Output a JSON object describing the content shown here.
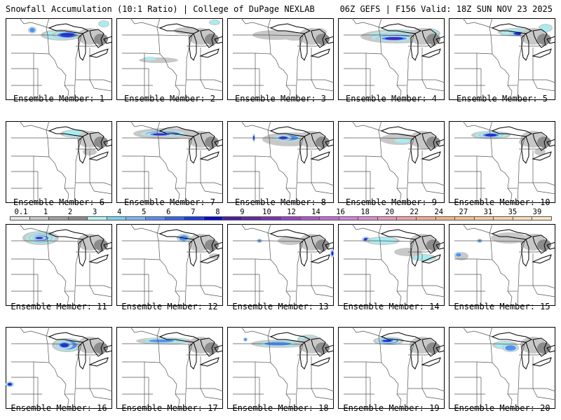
{
  "header": {
    "title": "Snowfall Accumulation (10:1 Ratio) | College of DuPage NEXLAB",
    "run_info": "06Z GEFS | F156 Valid: 18Z SUN NOV 23 2025"
  },
  "label_prefix": "Ensemble Member: ",
  "members": [
    {
      "number": "1",
      "label": "Ensemble Member: 1"
    },
    {
      "number": "2",
      "label": "Ensemble Member: 2"
    },
    {
      "number": "3",
      "label": "Ensemble Member: 3"
    },
    {
      "number": "4",
      "label": "Ensemble Member: 4"
    },
    {
      "number": "5",
      "label": "Ensemble Member: 5"
    },
    {
      "number": "6",
      "label": "Ensemble Member: 6"
    },
    {
      "number": "7",
      "label": "Ensemble Member: 7"
    },
    {
      "number": "8",
      "label": "Ensemble Member: 8"
    },
    {
      "number": "9",
      "label": "Ensemble Member: 9"
    },
    {
      "number": "10",
      "label": "Ensemble Member: 10"
    },
    {
      "number": "11",
      "label": "Ensemble Member: 11"
    },
    {
      "number": "12",
      "label": "Ensemble Member: 12"
    },
    {
      "number": "13",
      "label": "Ensemble Member: 13"
    },
    {
      "number": "14",
      "label": "Ensemble Member: 14"
    },
    {
      "number": "15",
      "label": "Ensemble Member: 15"
    },
    {
      "number": "16",
      "label": "Ensemble Member: 16"
    },
    {
      "number": "17",
      "label": "Ensemble Member: 17"
    },
    {
      "number": "18",
      "label": "Ensemble Member: 18"
    },
    {
      "number": "19",
      "label": "Ensemble Member: 19"
    },
    {
      "number": "20",
      "label": "Ensemble Member: 20"
    }
  ],
  "colorbar": {
    "labels": [
      "0.1",
      "1",
      "2",
      "3",
      "4",
      "5",
      "6",
      "7",
      "8",
      "9",
      "10",
      "12",
      "14",
      "16",
      "18",
      "20",
      "22",
      "24",
      "27",
      "31",
      "35",
      "39"
    ],
    "colors": [
      "#e6e6e6",
      "#c8c8c8",
      "#a0a0a0",
      "#8c8c8c",
      "#b4f0f0",
      "#78d2f0",
      "#82b4f0",
      "#5a8cf0",
      "#3c64e6",
      "#1e3cdc",
      "#0a0ac8",
      "#4b1ea0",
      "#6428a0",
      "#7d32b4",
      "#9646c8",
      "#aa5ac8",
      "#be6ed2",
      "#d282dc",
      "#dc8cd2",
      "#e696be",
      "#eea0aa",
      "#f0aa96",
      "#f2b48c",
      "#f4be96",
      "#f6c8a0",
      "#f8d2aa",
      "#fadcb4",
      "#fce6c8"
    ]
  },
  "colors": {
    "background": "#ffffff",
    "state_lines": "#555555",
    "light_snow": "#c8c8c8",
    "dark_snow": "#8c8c8c",
    "cyan": "#a8ecf0",
    "blue": "#5a8cf0",
    "dark_blue": "#1e28dc",
    "purple": "#6a1e9a"
  }
}
